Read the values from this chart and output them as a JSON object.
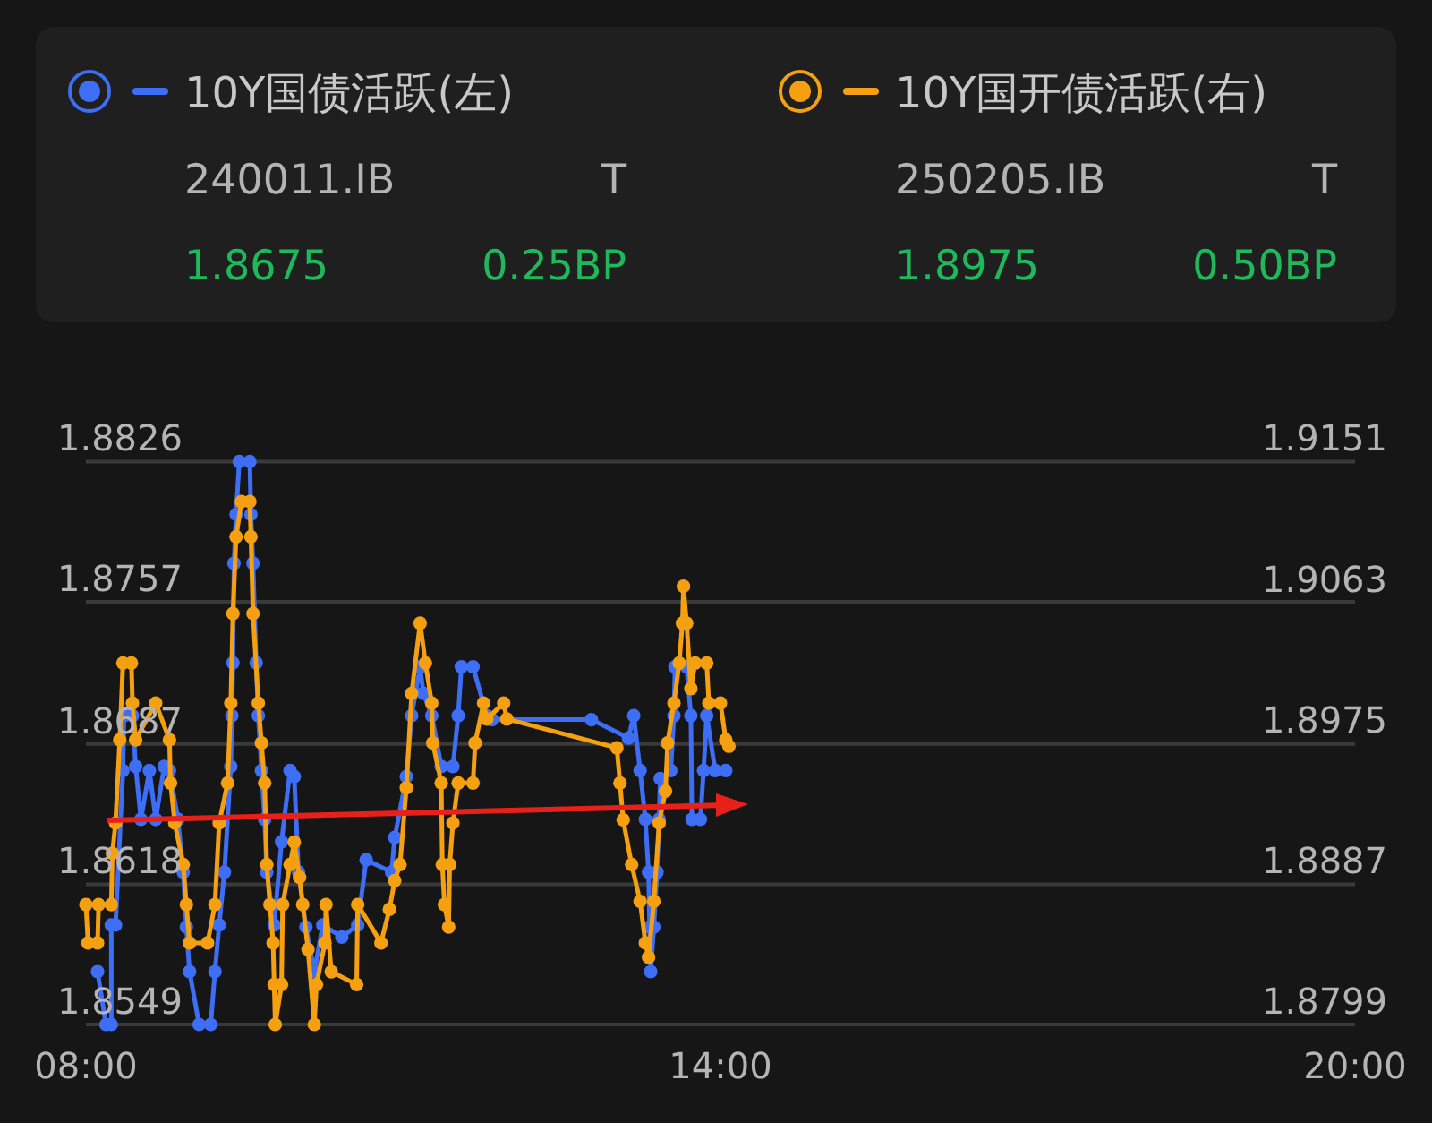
{
  "chart_data": {
    "type": "line",
    "legend": "top",
    "grid": "y",
    "marker": "circle",
    "line_style": "solid",
    "xlim": [
      8,
      20
    ],
    "xticks": [
      {
        "value": 8,
        "label": "08:00"
      },
      {
        "value": 14,
        "label": "14:00"
      },
      {
        "value": 20,
        "label": "20:00"
      }
    ],
    "ylim": [
      1.8549,
      1.8826
    ],
    "yticks": [
      1.8549,
      1.8618,
      1.8687,
      1.8757,
      1.8826
    ],
    "y2lim": [
      1.8799,
      1.9151
    ],
    "y2ticks": [
      1.8799,
      1.8887,
      1.8975,
      1.9063,
      1.9151
    ],
    "annotations": [
      "240011.IB",
      "T",
      "1.8675",
      "0.25BP",
      "250205.IB",
      "T",
      "1.8975",
      "0.50BP"
    ],
    "series": [
      {
        "name": "10Y国债活跃(左)",
        "color": "#3d6ef5",
        "x": [
          8.11,
          8.19,
          8.24,
          8.24,
          8.28,
          8.35,
          8.36,
          8.44,
          8.47,
          8.52,
          8.6,
          8.66,
          8.74,
          8.79,
          8.87,
          8.92,
          8.95,
          8.98,
          9.07,
          9.18,
          9.22,
          9.26,
          9.31,
          9.37,
          9.38,
          9.39,
          9.4,
          9.42,
          9.45,
          9.55,
          9.56,
          9.58,
          9.61,
          9.63,
          9.66,
          9.69,
          9.71,
          9.78,
          9.85,
          9.93,
          9.97,
          10.01,
          10.08,
          10.16,
          10.24,
          10.42,
          10.57,
          10.65,
          10.89,
          10.92,
          11.03,
          11.08,
          11.16,
          11.19,
          11.27,
          11.36,
          11.47,
          11.52,
          11.55,
          11.66,
          11.79,
          11.84,
          12.78,
          13.13,
          13.18,
          13.24,
          13.29,
          13.32,
          13.33,
          13.34,
          13.37,
          13.4,
          13.42,
          13.43,
          13.53,
          13.56,
          13.57,
          13.68,
          13.72,
          13.73,
          13.81,
          13.84,
          13.87,
          13.95,
          14.05
        ],
        "values": [
          1.8575,
          1.8549,
          1.8549,
          1.8598,
          1.8598,
          1.8674,
          1.8701,
          1.8701,
          1.8676,
          1.865,
          1.8674,
          1.865,
          1.8676,
          1.8674,
          1.865,
          1.8624,
          1.8597,
          1.8575,
          1.8549,
          1.8549,
          1.8575,
          1.8598,
          1.8624,
          1.8676,
          1.8701,
          1.8727,
          1.8776,
          1.88,
          1.8826,
          1.8826,
          1.88,
          1.8776,
          1.8727,
          1.8701,
          1.8674,
          1.865,
          1.8624,
          1.8598,
          1.8639,
          1.8674,
          1.8671,
          1.8624,
          1.8597,
          1.8575,
          1.8598,
          1.8592,
          1.8598,
          1.863,
          1.8624,
          1.8641,
          1.8671,
          1.8701,
          1.8725,
          1.8712,
          1.8701,
          1.8676,
          1.8676,
          1.8701,
          1.8725,
          1.8725,
          1.8701,
          1.8699,
          1.8699,
          1.869,
          1.8701,
          1.8674,
          1.865,
          1.8624,
          1.8597,
          1.8575,
          1.8597,
          1.8624,
          1.865,
          1.867,
          1.8674,
          1.8701,
          1.8725,
          1.8725,
          1.8701,
          1.865,
          1.865,
          1.8674,
          1.8701,
          1.8674,
          1.8674
        ]
      },
      {
        "name": "10Y国开债活跃(右)",
        "color": "#f5a010",
        "axis": "y2",
        "x": [
          8.0,
          8.02,
          8.11,
          8.12,
          8.24,
          8.25,
          8.28,
          8.32,
          8.35,
          8.43,
          8.44,
          8.47,
          8.66,
          8.79,
          8.8,
          8.84,
          8.92,
          8.95,
          8.98,
          9.15,
          9.22,
          9.26,
          9.34,
          9.37,
          9.39,
          9.42,
          9.47,
          9.55,
          9.56,
          9.58,
          9.63,
          9.66,
          9.69,
          9.71,
          9.74,
          9.77,
          9.78,
          9.79,
          9.85,
          9.86,
          9.93,
          9.97,
          10.02,
          10.05,
          10.1,
          10.16,
          10.18,
          10.26,
          10.27,
          10.32,
          10.56,
          10.57,
          10.79,
          10.87,
          10.92,
          10.97,
          11.03,
          11.08,
          11.16,
          11.21,
          11.27,
          11.28,
          11.36,
          11.37,
          11.39,
          11.43,
          11.44,
          11.47,
          11.52,
          11.66,
          11.68,
          11.76,
          11.79,
          11.95,
          11.98,
          13.02,
          13.05,
          13.08,
          13.16,
          13.24,
          13.29,
          13.32,
          13.37,
          13.42,
          13.48,
          13.5,
          13.56,
          13.61,
          13.64,
          13.65,
          13.68,
          13.72,
          13.76,
          13.87,
          13.89,
          14.0,
          14.05,
          14.08
        ],
        "values": [
          1.8874,
          1.885,
          1.885,
          1.8874,
          1.8874,
          1.8906,
          1.8925,
          1.8977,
          1.9025,
          1.9025,
          1.9,
          1.8977,
          1.9,
          1.8977,
          1.895,
          1.8925,
          1.8899,
          1.8874,
          1.885,
          1.885,
          1.8874,
          1.8925,
          1.895,
          1.9,
          1.9056,
          1.9104,
          1.9126,
          1.9126,
          1.9104,
          1.9056,
          1.9,
          1.8975,
          1.895,
          1.8899,
          1.8874,
          1.885,
          1.8824,
          1.8799,
          1.8824,
          1.8874,
          1.8899,
          1.8913,
          1.8891,
          1.8874,
          1.8846,
          1.8799,
          1.8824,
          1.885,
          1.8874,
          1.8832,
          1.8824,
          1.8874,
          1.885,
          1.8871,
          1.8889,
          1.8899,
          1.8947,
          1.9006,
          1.905,
          1.9025,
          1.9,
          1.8975,
          1.895,
          1.8899,
          1.8874,
          1.886,
          1.8899,
          1.8925,
          1.895,
          1.895,
          1.8975,
          1.9,
          1.899,
          1.9,
          1.899,
          1.8972,
          1.895,
          1.8927,
          1.8899,
          1.8876,
          1.885,
          1.8841,
          1.8876,
          1.8925,
          1.8945,
          1.8975,
          1.9,
          1.9025,
          1.905,
          1.9073,
          1.905,
          1.9009,
          1.9025,
          1.9025,
          1.9,
          1.9,
          1.8977,
          1.8973
        ]
      }
    ]
  }
}
